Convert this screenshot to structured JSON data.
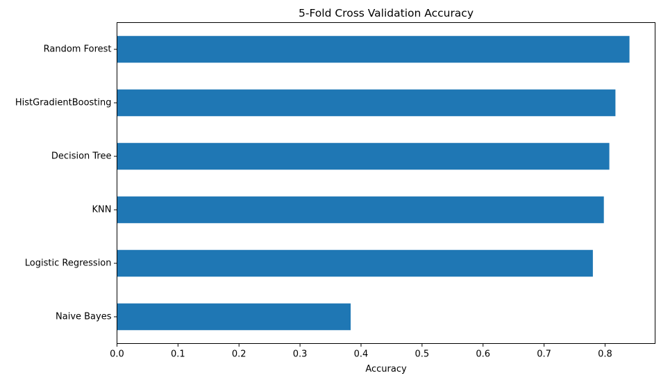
{
  "chart_data": {
    "type": "bar",
    "orientation": "horizontal",
    "title": "5-Fold Cross Validation Accuracy",
    "xlabel": "Accuracy",
    "ylabel": "",
    "categories": [
      "Random Forest",
      "HistGradientBoosting",
      "Decision Tree",
      "KNN",
      "Logistic Regression",
      "Naive Bayes"
    ],
    "values": [
      0.84,
      0.817,
      0.807,
      0.798,
      0.78,
      0.383
    ],
    "xlim": [
      0,
      0.882
    ],
    "xticks": [
      "0.0",
      "0.1",
      "0.2",
      "0.3",
      "0.4",
      "0.5",
      "0.6",
      "0.7",
      "0.8"
    ],
    "grid": false,
    "legend": "none",
    "bar_color": "#1f77b4"
  }
}
